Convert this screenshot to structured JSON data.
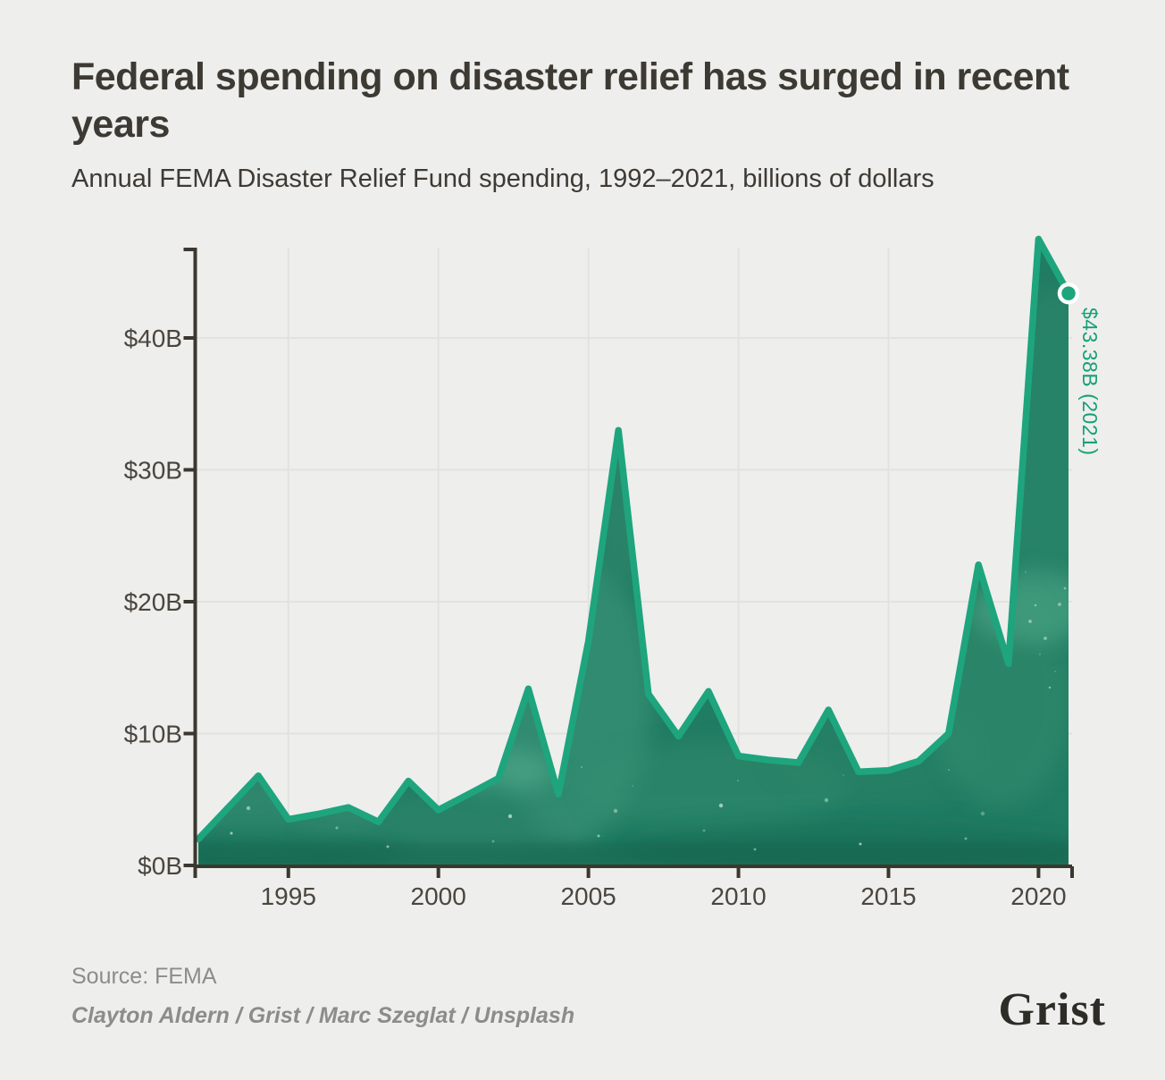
{
  "header": {
    "title": "Federal spending on disaster relief has surged in recent years",
    "subtitle": "Annual FEMA Disaster Relief Fund spending, 1992–2021, billions of dollars"
  },
  "footer": {
    "source": "Source: FEMA",
    "credit": "Clayton Aldern / Grist / Marc Szeglat / Unsplash",
    "logo_text": "Grist"
  },
  "chart_data": {
    "type": "area",
    "title": "Federal spending on disaster relief has surged in recent years",
    "subtitle": "Annual FEMA Disaster Relief Fund spending, 1992–2021, billions of dollars",
    "xlabel": "",
    "ylabel": "billions of dollars",
    "x": [
      1992,
      1993,
      1994,
      1995,
      1996,
      1997,
      1998,
      1999,
      2000,
      2001,
      2002,
      2003,
      2004,
      2005,
      2006,
      2007,
      2008,
      2009,
      2010,
      2011,
      2012,
      2013,
      2014,
      2015,
      2016,
      2017,
      2018,
      2019,
      2020,
      2021
    ],
    "values": [
      2.0,
      4.4,
      6.8,
      3.5,
      3.9,
      4.4,
      3.3,
      6.4,
      4.2,
      5.4,
      6.6,
      13.4,
      5.4,
      17.0,
      33.0,
      13.0,
      9.8,
      13.2,
      8.3,
      8.0,
      7.8,
      11.8,
      7.1,
      7.2,
      7.9,
      10.0,
      22.8,
      15.3,
      47.5,
      43.38
    ],
    "series_name": "Annual FEMA Disaster Relief Fund spending ($B)",
    "xlim": [
      1992,
      2021
    ],
    "ylim": [
      0,
      47
    ],
    "grid": true,
    "legend": "none",
    "x_ticks": [
      {
        "value": 1995,
        "label": "1995"
      },
      {
        "value": 2000,
        "label": "2000"
      },
      {
        "value": 2005,
        "label": "2005"
      },
      {
        "value": 2010,
        "label": "2010"
      },
      {
        "value": 2015,
        "label": "2015"
      },
      {
        "value": 2020,
        "label": "2020"
      }
    ],
    "y_ticks": [
      {
        "value": 0,
        "label": "$0B"
      },
      {
        "value": 10,
        "label": "$10B"
      },
      {
        "value": 20,
        "label": "$20B"
      },
      {
        "value": 30,
        "label": "$30B"
      },
      {
        "value": 40,
        "label": "$40B"
      }
    ],
    "annotation": {
      "label": "$43.38B (2021)",
      "x": 2021,
      "y": 43.38
    },
    "colors": {
      "line": "#1ea57d",
      "fill": "#207c63",
      "annotation": "#17a078",
      "axis": "#3b372f",
      "grid": "#e2e2e0",
      "background": "#eeeeed",
      "dot_ring": "#ffffff"
    }
  }
}
